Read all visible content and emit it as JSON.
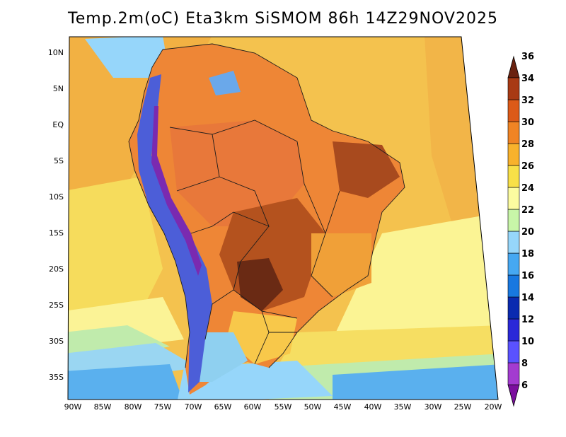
{
  "title": "Temp.2m(oC) Eta3km SiSMOM 86h 14Z29NOV2025",
  "lat_labels": [
    "10N",
    "5N",
    "EQ",
    "5S",
    "10S",
    "15S",
    "20S",
    "25S",
    "30S",
    "35S"
  ],
  "lon_labels": [
    "90W",
    "85W",
    "80W",
    "75W",
    "70W",
    "65W",
    "60W",
    "55W",
    "50W",
    "45W",
    "40W",
    "35W",
    "30W",
    "25W",
    "20W"
  ],
  "colorbar": {
    "labels": [
      "6",
      "8",
      "10",
      "12",
      "14",
      "16",
      "18",
      "20",
      "22",
      "24",
      "26",
      "28",
      "30",
      "32",
      "34",
      "36"
    ],
    "colors": [
      "#7b0f9e",
      "#a33bd0",
      "#5a52ff",
      "#2a28d8",
      "#0a2ab0",
      "#1878e0",
      "#46a8f2",
      "#96d6fa",
      "#c8f5a8",
      "#fcfca0",
      "#f8e048",
      "#f8b22c",
      "#f08424",
      "#dc5a18",
      "#a83a14",
      "#6a2210"
    ]
  },
  "palette": {
    "ocean_tropical": "#f2b548",
    "ocean_sub": "#f6de62",
    "ocean_pale": "#fbf494",
    "ocean_cool": "#c0ebac",
    "ocean_cold": "#9ad6f2",
    "ocean_colder": "#5ab0ee",
    "land_hot": "#ee8636",
    "land_hotter": "#d8632a",
    "land_hottest": "#a84a1e",
    "andes_cold": "#4c5ed8",
    "andes_colder": "#7a2ab0"
  }
}
